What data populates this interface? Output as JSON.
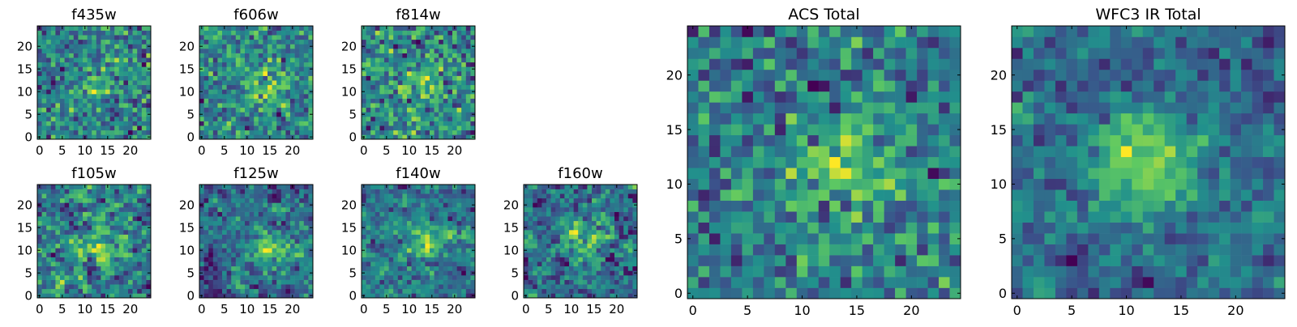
{
  "figure": {
    "colormap": [
      "#440154",
      "#3b528b",
      "#21918c",
      "#5ec962",
      "#fde725"
    ],
    "seed": 7
  },
  "chart_data": [
    {
      "type": "heatmap",
      "title": "f435w",
      "grid": false,
      "rows": 25,
      "cols": 25,
      "peak": [
        13,
        12
      ],
      "amplitude": 0.35,
      "noise": 1.0,
      "smooth": 0,
      "xticks": [
        0,
        5,
        10,
        15,
        20
      ],
      "yticks": [
        0,
        5,
        10,
        15,
        20
      ],
      "xlim": [
        -0.5,
        24.5
      ],
      "ylim": [
        -0.5,
        24.5
      ]
    },
    {
      "type": "heatmap",
      "title": "f606w",
      "grid": false,
      "rows": 25,
      "cols": 25,
      "peak": [
        13,
        11
      ],
      "amplitude": 0.45,
      "noise": 1.0,
      "smooth": 0,
      "xticks": [
        0,
        5,
        10,
        15,
        20
      ],
      "yticks": [
        0,
        5,
        10,
        15,
        20
      ],
      "xlim": [
        -0.5,
        24.5
      ],
      "ylim": [
        -0.5,
        24.5
      ]
    },
    {
      "type": "heatmap",
      "title": "f814w",
      "grid": false,
      "rows": 25,
      "cols": 25,
      "peak": [
        14,
        12
      ],
      "amplitude": 0.4,
      "noise": 1.0,
      "smooth": 0,
      "xticks": [
        0,
        5,
        10,
        15,
        20
      ],
      "yticks": [
        0,
        5,
        10,
        15,
        20
      ],
      "xlim": [
        -0.5,
        24.5
      ],
      "ylim": [
        -0.5,
        24.5
      ]
    },
    {
      "type": "heatmap",
      "title": "f105w",
      "grid": false,
      "rows": 25,
      "cols": 25,
      "peak": [
        13,
        12
      ],
      "amplitude": 0.5,
      "noise": 1.0,
      "smooth": 1,
      "xticks": [
        0,
        5,
        10,
        15,
        20
      ],
      "yticks": [
        0,
        5,
        10,
        15,
        20
      ],
      "xlim": [
        -0.5,
        24.5
      ],
      "ylim": [
        -0.5,
        24.5
      ]
    },
    {
      "type": "heatmap",
      "title": "f125w",
      "grid": false,
      "rows": 25,
      "cols": 25,
      "peak": [
        14,
        11
      ],
      "amplitude": 0.55,
      "noise": 1.0,
      "smooth": 1,
      "xticks": [
        0,
        5,
        10,
        15,
        20
      ],
      "yticks": [
        0,
        5,
        10,
        15,
        20
      ],
      "xlim": [
        -0.5,
        24.5
      ],
      "ylim": [
        -0.5,
        24.5
      ]
    },
    {
      "type": "heatmap",
      "title": "f140w",
      "grid": false,
      "rows": 25,
      "cols": 25,
      "peak": [
        13,
        12
      ],
      "amplitude": 0.55,
      "noise": 1.0,
      "smooth": 1,
      "xticks": [
        0,
        5,
        10,
        15,
        20
      ],
      "yticks": [
        0,
        5,
        10,
        15,
        20
      ],
      "xlim": [
        -0.5,
        24.5
      ],
      "ylim": [
        -0.5,
        24.5
      ]
    },
    {
      "type": "heatmap",
      "title": "f160w",
      "grid": false,
      "rows": 25,
      "cols": 25,
      "peak": [
        12,
        12
      ],
      "amplitude": 0.5,
      "noise": 1.0,
      "smooth": 1,
      "xticks": [
        0,
        5,
        10,
        15,
        20
      ],
      "yticks": [
        0,
        5,
        10,
        15,
        20
      ],
      "xlim": [
        -0.5,
        24.5
      ],
      "ylim": [
        -0.5,
        24.5
      ]
    },
    {
      "type": "heatmap",
      "title": "ACS Total",
      "grid": false,
      "rows": 25,
      "cols": 25,
      "peak": [
        14,
        12
      ],
      "amplitude": 0.7,
      "noise": 0.9,
      "smooth": 0,
      "xticks": [
        0,
        5,
        10,
        15,
        20
      ],
      "yticks": [
        0,
        5,
        10,
        15,
        20
      ],
      "xlim": [
        -0.5,
        24.5
      ],
      "ylim": [
        -0.5,
        24.5
      ]
    },
    {
      "type": "heatmap",
      "title": "WFC3 IR Total",
      "grid": false,
      "rows": 25,
      "cols": 25,
      "peak": [
        12,
        12
      ],
      "amplitude": 0.8,
      "noise": 0.9,
      "smooth": 1,
      "xticks": [
        0,
        5,
        10,
        15,
        20
      ],
      "yticks": [
        0,
        5,
        10,
        15,
        20
      ],
      "xlim": [
        -0.5,
        24.5
      ],
      "ylim": [
        -0.5,
        24.5
      ]
    }
  ]
}
